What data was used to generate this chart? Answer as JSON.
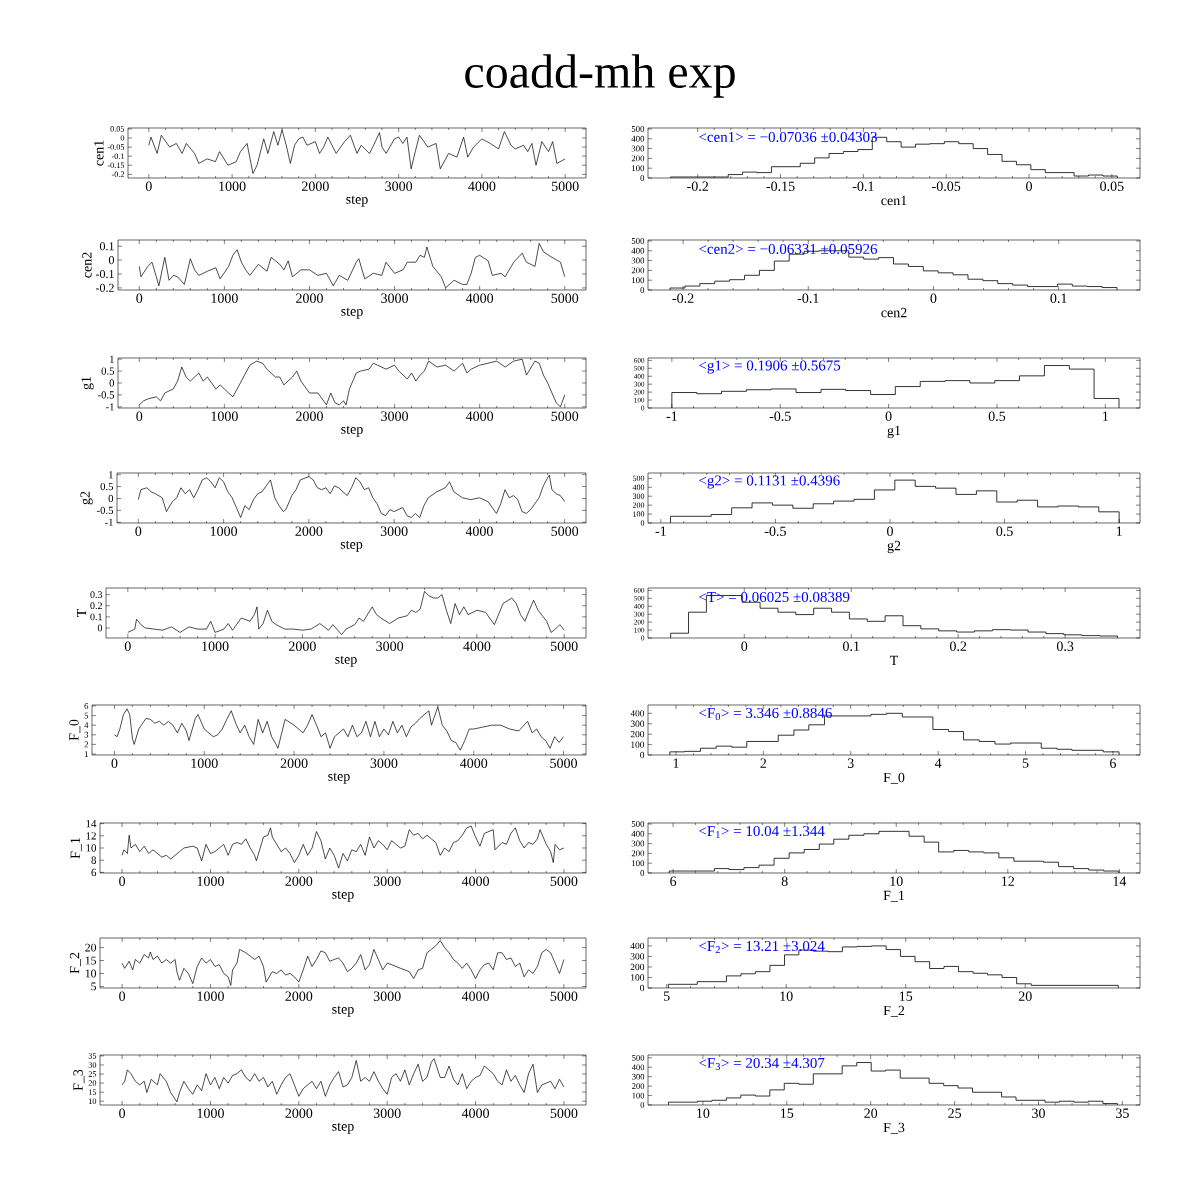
{
  "chart_data": [
    {
      "type": "line",
      "title": "coadd-mh exp",
      "xlabel": "step",
      "ylabel": "cen1",
      "color": "#000000",
      "xlim": [
        -250,
        5250
      ],
      "xticks": [
        0,
        1000,
        2000,
        3000,
        4000,
        5000
      ],
      "ylim": [
        -0.22,
        0.055
      ],
      "yticks": [
        -0.2,
        -0.15,
        -0.1,
        -0.05,
        0,
        0.05
      ],
      "x": [
        0,
        25,
        100,
        150,
        250,
        330,
        400,
        450,
        550,
        600,
        700,
        800,
        850,
        950,
        1050,
        1100,
        1180,
        1250,
        1300,
        1380,
        1430,
        1500,
        1550,
        1600,
        1650,
        1700,
        1750,
        1800,
        1850,
        1900,
        2000,
        2050,
        2100,
        2150,
        2250,
        2350,
        2420,
        2500,
        2550,
        2650,
        2700,
        2770,
        2800,
        2850,
        2950,
        3000,
        3050,
        3100,
        3150,
        3200,
        3250,
        3350,
        3450,
        3500,
        3600,
        3700,
        3780,
        3830,
        3900,
        4000,
        4100,
        4200,
        4270,
        4350,
        4400,
        4500,
        4550,
        4600,
        4650,
        4720,
        4800,
        4850,
        4900,
        5000
      ],
      "values": [
        -0.04,
        0.005,
        -0.085,
        0.015,
        -0.05,
        -0.03,
        -0.085,
        -0.03,
        -0.085,
        -0.14,
        -0.115,
        -0.13,
        -0.075,
        -0.15,
        -0.13,
        -0.075,
        -0.03,
        -0.195,
        -0.15,
        -0.005,
        -0.085,
        0.035,
        -0.04,
        0.045,
        -0.04,
        -0.14,
        -0.04,
        -0.005,
        0.005,
        -0.04,
        -0.02,
        -0.085,
        -0.05,
        0.005,
        -0.085,
        -0.02,
        0.015,
        -0.085,
        -0.04,
        -0.085,
        -0.04,
        0.03,
        -0.05,
        -0.085,
        -0.005,
        0.005,
        -0.03,
        0.005,
        -0.17,
        -0.075,
        0.015,
        -0.05,
        -0.03,
        -0.17,
        -0.085,
        -0.105,
        0.005,
        -0.105,
        -0.05,
        -0.005,
        -0.03,
        -0.06,
        0.035,
        -0.04,
        -0.06,
        -0.04,
        -0.075,
        -0.03,
        -0.15,
        -0.02,
        -0.075,
        -0.02,
        -0.14,
        -0.115
      ]
    },
    {
      "type": "histogram",
      "xlabel": "cen1",
      "color": "#000000",
      "xlim": [
        -0.23,
        0.067
      ],
      "xticks": [
        -0.2,
        -0.15,
        -0.1,
        -0.05,
        0,
        0.05
      ],
      "ylim": [
        0,
        510
      ],
      "yticks": [
        0,
        100,
        200,
        300,
        400,
        500
      ],
      "annotations": [
        "<cen1> = −0.07036 ±0.04303"
      ],
      "bins": [
        -0.2164,
        -0.1816,
        -0.1729,
        -0.1642,
        -0.1555,
        -0.1381,
        -0.1294,
        -0.1207,
        -0.112,
        -0.1033,
        -0.0946,
        -0.0859,
        -0.0772,
        -0.0685,
        -0.0598,
        -0.0511,
        -0.0424,
        -0.0337,
        -0.025,
        -0.0163,
        -0.0076,
        0.0011,
        0.0098,
        0.0272,
        0.0359,
        0.0446,
        0.0533
      ],
      "values": [
        10,
        35,
        60,
        55,
        115,
        150,
        205,
        250,
        270,
        290,
        415,
        370,
        315,
        345,
        350,
        370,
        350,
        300,
        240,
        170,
        135,
        85,
        55,
        20,
        30,
        20
      ]
    },
    {
      "type": "line",
      "xlabel": "step",
      "ylabel": "cen2",
      "color": "#000000",
      "xlim": [
        -250,
        5250
      ],
      "xticks": [
        0,
        1000,
        2000,
        3000,
        4000,
        5000
      ],
      "ylim": [
        -0.215,
        0.145
      ],
      "yticks": [
        -0.2,
        -0.1,
        0,
        0.1
      ],
      "x": [
        0,
        20,
        100,
        150,
        200,
        230,
        300,
        350,
        400,
        450,
        530,
        600,
        650,
        700,
        800,
        900,
        950,
        1050,
        1100,
        1150,
        1200,
        1250,
        1300,
        1400,
        1500,
        1550,
        1600,
        1650,
        1700,
        1750,
        1800,
        1900,
        2000,
        2100,
        2200,
        2280,
        2350,
        2450,
        2550,
        2580,
        2650,
        2750,
        2850,
        2900,
        3000,
        3100,
        3150,
        3250,
        3300,
        3350,
        3380,
        3450,
        3550,
        3600,
        3700,
        3800,
        3850,
        3900,
        3950,
        4000,
        4100,
        4150,
        4250,
        4300,
        4400,
        4500,
        4550,
        4650,
        4700,
        4750,
        4850,
        4950,
        5000
      ],
      "values": [
        -0.045,
        -0.12,
        -0.045,
        -0.015,
        -0.12,
        -0.185,
        0.02,
        -0.145,
        -0.11,
        -0.12,
        -0.175,
        0.01,
        -0.07,
        -0.11,
        -0.08,
        -0.055,
        -0.135,
        -0.045,
        0.035,
        0.075,
        -0.015,
        -0.07,
        -0.11,
        -0.03,
        -0.08,
        0.02,
        -0.005,
        -0.03,
        -0.07,
        -0.005,
        -0.12,
        -0.07,
        -0.07,
        -0.11,
        -0.095,
        -0.185,
        -0.11,
        -0.145,
        -0.015,
        0.01,
        -0.135,
        -0.095,
        -0.11,
        -0.015,
        -0.095,
        -0.07,
        -0.015,
        -0.015,
        0.035,
        0.02,
        0.095,
        -0.045,
        -0.12,
        -0.2,
        -0.145,
        -0.175,
        -0.175,
        -0.095,
        0.02,
        0.035,
        -0.005,
        -0.11,
        -0.095,
        -0.12,
        -0.015,
        0.05,
        -0.015,
        -0.045,
        0.12,
        0.06,
        0.02,
        -0.015,
        -0.12
      ]
    },
    {
      "type": "histogram",
      "xlabel": "cen2",
      "color": "#000000",
      "xlim": [
        -0.228,
        0.165
      ],
      "xticks": [
        -0.2,
        -0.1,
        0,
        0.1
      ],
      "ylim": [
        0,
        510
      ],
      "yticks": [
        0,
        100,
        200,
        300,
        400,
        500
      ],
      "annotations": [
        "<cen2> = −0.06331 ±0.05926"
      ],
      "bins": [
        -0.2104,
        -0.1985,
        -0.1866,
        -0.1747,
        -0.1628,
        -0.1509,
        -0.139,
        -0.1271,
        -0.1152,
        -0.1033,
        -0.0914,
        -0.0676,
        -0.0557,
        -0.0438,
        -0.0319,
        -0.02,
        -0.0081,
        0.0038,
        0.0157,
        0.0276,
        0.0395,
        0.0514,
        0.0633,
        0.0752,
        0.099,
        0.1109,
        0.1228,
        0.1347,
        0.1466
      ],
      "values": [
        20,
        40,
        65,
        90,
        105,
        150,
        200,
        295,
        365,
        395,
        400,
        335,
        315,
        330,
        265,
        240,
        195,
        175,
        155,
        110,
        95,
        65,
        50,
        35,
        60,
        40,
        35,
        25
      ]
    },
    {
      "type": "line",
      "xlabel": "step",
      "ylabel": "g1",
      "color": "#000000",
      "xlim": [
        -250,
        5250
      ],
      "xticks": [
        0,
        1000,
        2000,
        3000,
        4000,
        5000
      ],
      "ylim": [
        -1.05,
        1.05
      ],
      "yticks": [
        -1,
        -0.5,
        0,
        0.5,
        1
      ],
      "x": [
        0,
        50,
        100,
        200,
        250,
        300,
        400,
        450,
        500,
        550,
        600,
        700,
        750,
        800,
        900,
        950,
        1050,
        1100,
        1150,
        1200,
        1250,
        1300,
        1380,
        1450,
        1500,
        1600,
        1650,
        1700,
        1800,
        1850,
        1900,
        2000,
        2100,
        2150,
        2200,
        2250,
        2300,
        2350,
        2400,
        2430,
        2470,
        2550,
        2600,
        2700,
        2750,
        2800,
        2900,
        3000,
        3050,
        3150,
        3200,
        3250,
        3300,
        3350,
        3400,
        3500,
        3600,
        3700,
        3800,
        3850,
        3900,
        4000,
        4100,
        4200,
        4300,
        4400,
        4500,
        4550,
        4650,
        4700,
        4750,
        4800,
        4850,
        4900,
        4950,
        5000
      ],
      "values": [
        -0.92,
        -0.75,
        -0.67,
        -0.58,
        -0.75,
        -0.42,
        -0.25,
        0.08,
        0.67,
        0.25,
        0.08,
        0.42,
        0.08,
        0.25,
        -0.25,
        -0.08,
        -0.42,
        -0.58,
        -0.25,
        0.08,
        0.42,
        0.75,
        0.92,
        0.83,
        0.58,
        0.25,
        0.25,
        -0.08,
        0.25,
        0.5,
        0.08,
        -0.42,
        -0.42,
        -0.67,
        -0.92,
        -0.42,
        -0.83,
        -0.92,
        -0.75,
        -0.92,
        -0.25,
        0.42,
        0.5,
        0.58,
        0.83,
        0.75,
        0.58,
        0.75,
        0.5,
        0.17,
        0.42,
        0.08,
        0.33,
        0.5,
        0.92,
        0.67,
        0.75,
        0.5,
        0.83,
        0.42,
        0.58,
        0.75,
        0.83,
        0.92,
        0.67,
        0.92,
        1.0,
        0.33,
        0.92,
        0.83,
        0.33,
        0.0,
        -0.42,
        -0.83,
        -1.0,
        -0.5
      ]
    },
    {
      "type": "histogram",
      "xlabel": "g1",
      "color": "#000000",
      "xlim": [
        -1.11,
        1.16
      ],
      "xticks": [
        -1,
        -0.5,
        0,
        0.5,
        1
      ],
      "ylim": [
        0,
        630
      ],
      "yticks": [
        0,
        100,
        200,
        300,
        400,
        500,
        600
      ],
      "annotations": [
        "<g1> = 0.1906 ±0.5675"
      ],
      "bins": [
        -1.0,
        -0.885,
        -0.771,
        -0.656,
        -0.542,
        -0.427,
        -0.312,
        -0.198,
        -0.083,
        0.031,
        0.146,
        0.261,
        0.375,
        0.49,
        0.604,
        0.719,
        0.834,
        0.948,
        1.063
      ],
      "values": [
        195,
        180,
        210,
        230,
        240,
        195,
        235,
        220,
        170,
        270,
        335,
        345,
        315,
        345,
        405,
        535,
        490,
        120
      ]
    },
    {
      "type": "line",
      "xlabel": "step",
      "ylabel": "g2",
      "color": "#000000",
      "xlim": [
        -250,
        5250
      ],
      "xticks": [
        0,
        1000,
        2000,
        3000,
        4000,
        5000
      ],
      "ylim": [
        -1.03,
        1.07
      ],
      "yticks": [
        -1,
        -0.5,
        0,
        0.5,
        1
      ],
      "x": [
        0,
        30,
        100,
        150,
        200,
        280,
        330,
        400,
        450,
        500,
        550,
        600,
        650,
        700,
        750,
        800,
        850,
        900,
        950,
        1000,
        1050,
        1100,
        1150,
        1200,
        1250,
        1300,
        1350,
        1400,
        1450,
        1500,
        1550,
        1600,
        1650,
        1700,
        1730,
        1800,
        1850,
        1900,
        2000,
        2050,
        2100,
        2150,
        2200,
        2250,
        2300,
        2350,
        2400,
        2450,
        2500,
        2550,
        2600,
        2650,
        2700,
        2750,
        2800,
        2850,
        2900,
        2950,
        3000,
        3100,
        3150,
        3200,
        3250,
        3300,
        3350,
        3400,
        3500,
        3600,
        3650,
        3700,
        3800,
        3900,
        4000,
        4100,
        4150,
        4200,
        4250,
        4300,
        4350,
        4400,
        4450,
        4500,
        4550,
        4600,
        4700,
        4750,
        4800,
        4820,
        4850,
        4900,
        4950,
        5000
      ],
      "values": [
        -0.05,
        0.37,
        0.45,
        0.28,
        0.2,
        0.03,
        -0.55,
        -0.13,
        0.03,
        0.45,
        0.2,
        0.37,
        0.03,
        0.37,
        0.78,
        0.87,
        0.7,
        0.45,
        0.87,
        0.7,
        0.28,
        0.03,
        -0.38,
        -0.8,
        -0.3,
        -0.47,
        -0.05,
        0.2,
        0.28,
        0.53,
        0.78,
        0.03,
        -0.3,
        -0.55,
        -0.47,
        0.12,
        0.37,
        0.78,
        0.92,
        0.78,
        0.45,
        0.37,
        0.45,
        0.2,
        0.53,
        0.45,
        0.28,
        0.12,
        0.45,
        0.87,
        0.7,
        0.37,
        0.45,
        0.03,
        -0.22,
        -0.63,
        -0.72,
        -0.47,
        -0.55,
        -0.38,
        -0.72,
        -0.8,
        -0.63,
        -0.8,
        -0.3,
        0.03,
        0.28,
        0.45,
        0.7,
        0.28,
        0.03,
        -0.05,
        0.03,
        -0.13,
        -0.38,
        -0.63,
        -0.22,
        0.37,
        0.03,
        0.12,
        -0.05,
        -0.55,
        -0.63,
        -0.47,
        0.03,
        0.53,
        0.87,
        0.98,
        0.37,
        0.2,
        0.12,
        -0.13
      ]
    },
    {
      "type": "histogram",
      "xlabel": "g2",
      "color": "#000000",
      "xlim": [
        -1.056,
        1.091
      ],
      "xticks": [
        -1,
        -0.5,
        0,
        0.5,
        1
      ],
      "ylim": [
        0,
        560
      ],
      "yticks": [
        0,
        100,
        200,
        300,
        400,
        500
      ],
      "annotations": [
        "<g2> = 0.1131 ±0.4396"
      ],
      "bins": [
        -0.958,
        -0.78,
        -0.691,
        -0.602,
        -0.513,
        -0.424,
        -0.335,
        -0.246,
        -0.157,
        -0.068,
        0.021,
        0.11,
        0.199,
        0.288,
        0.377,
        0.466,
        0.555,
        0.644,
        0.733,
        0.822,
        0.911,
        1.0
      ],
      "values": [
        75,
        95,
        170,
        225,
        200,
        165,
        215,
        245,
        265,
        370,
        480,
        410,
        390,
        320,
        360,
        235,
        255,
        180,
        190,
        180,
        125
      ]
    },
    {
      "type": "line",
      "xlabel": "step",
      "ylabel": "T",
      "color": "#000000",
      "xlim": [
        -250,
        5250
      ],
      "xticks": [
        0,
        1000,
        2000,
        3000,
        4000,
        5000
      ],
      "ylim": [
        -0.09,
        0.36
      ],
      "yticks": [
        0,
        0.1,
        0.2,
        0.3
      ],
      "x": [
        0,
        80,
        100,
        150,
        200,
        300,
        400,
        500,
        600,
        700,
        800,
        900,
        950,
        1000,
        1100,
        1150,
        1200,
        1300,
        1400,
        1450,
        1480,
        1500,
        1550,
        1600,
        1650,
        1700,
        1800,
        1900,
        2000,
        2100,
        2200,
        2300,
        2350,
        2450,
        2500,
        2600,
        2650,
        2700,
        2800,
        2850,
        2900,
        3000,
        3100,
        3200,
        3250,
        3300,
        3350,
        3400,
        3450,
        3500,
        3550,
        3600,
        3650,
        3700,
        3750,
        3800,
        3850,
        3900,
        4000,
        4100,
        4200,
        4300,
        4400,
        4450,
        4500,
        4550,
        4600,
        4650,
        4700,
        4800,
        4850,
        4900,
        4950,
        5000
      ],
      "values": [
        -0.04,
        -0.01,
        0.08,
        0.03,
        0,
        -0.01,
        -0.02,
        0.01,
        -0.04,
        0.01,
        -0.01,
        -0.01,
        0.06,
        -0.04,
        -0.01,
        0.04,
        -0.02,
        0.09,
        0.06,
        0.12,
        0.19,
        -0.01,
        0.04,
        0.16,
        0.06,
        0.03,
        -0.01,
        -0.01,
        -0.02,
        -0.01,
        0.04,
        -0.02,
        0.03,
        -0.06,
        -0.01,
        0.03,
        0.09,
        0.06,
        0.19,
        0.12,
        0.09,
        0.04,
        0.09,
        0.11,
        0.16,
        0.14,
        0.17,
        0.33,
        0.29,
        0.27,
        0.27,
        0.3,
        0.16,
        0.04,
        0.22,
        0.12,
        0.19,
        0.12,
        0.16,
        0.14,
        0.03,
        0.22,
        0.27,
        0.22,
        0.12,
        0.06,
        0.16,
        0.25,
        0.16,
        0.06,
        -0.04,
        -0.01,
        0.03,
        -0.02
      ]
    },
    {
      "type": "histogram",
      "xlabel": "T",
      "color": "#000000",
      "xlim": [
        -0.09,
        0.37
      ],
      "xticks": [
        0,
        0.1,
        0.2,
        0.3
      ],
      "ylim": [
        0,
        630
      ],
      "yticks": [
        0,
        100,
        200,
        300,
        400,
        500,
        600
      ],
      "annotations": [
        "<T> = 0.06025 ±0.08389"
      ],
      "bins": [
        -0.0688,
        -0.0521,
        -0.0354,
        -0.002,
        0.0148,
        0.0315,
        0.0482,
        0.0649,
        0.0816,
        0.0983,
        0.115,
        0.1317,
        0.1484,
        0.1651,
        0.1818,
        0.1986,
        0.2153,
        0.232,
        0.2487,
        0.2654,
        0.2821,
        0.2988,
        0.3155,
        0.3322,
        0.3489
      ],
      "values": [
        60,
        325,
        535,
        450,
        375,
        325,
        295,
        375,
        325,
        240,
        210,
        280,
        155,
        115,
        90,
        75,
        90,
        105,
        100,
        75,
        55,
        40,
        30,
        25
      ]
    },
    {
      "type": "line",
      "xlabel": "step",
      "ylabel": "F_0",
      "color": "#000000",
      "xlim": [
        -250,
        5250
      ],
      "xticks": [
        0,
        1000,
        2000,
        3000,
        4000,
        5000
      ],
      "ylim": [
        0.9,
        6.1
      ],
      "yticks": [
        1,
        2,
        3,
        4,
        5,
        6
      ],
      "x": [
        0,
        30,
        60,
        100,
        140,
        170,
        200,
        220,
        270,
        300,
        350,
        400,
        450,
        500,
        550,
        600,
        650,
        700,
        750,
        800,
        830,
        900,
        930,
        1000,
        1100,
        1150,
        1200,
        1250,
        1300,
        1350,
        1400,
        1450,
        1500,
        1550,
        1600,
        1650,
        1700,
        1750,
        1800,
        1820,
        1900,
        2000,
        2100,
        2150,
        2200,
        2250,
        2300,
        2350,
        2400,
        2450,
        2500,
        2550,
        2600,
        2650,
        2700,
        2750,
        2800,
        2850,
        2900,
        2950,
        3000,
        3050,
        3100,
        3150,
        3200,
        3250,
        3300,
        3350,
        3400,
        3500,
        3530,
        3600,
        3650,
        3700,
        3750,
        3800,
        3850,
        3900,
        3950,
        4000,
        4100,
        4200,
        4300,
        4400,
        4500,
        4600,
        4650,
        4700,
        4750,
        4800,
        4850,
        4900,
        4950,
        5000
      ],
      "values": [
        3.0,
        2.8,
        3.6,
        5.1,
        5.7,
        5.1,
        2.6,
        2.0,
        3.6,
        4.0,
        4.7,
        4.6,
        4.2,
        4.4,
        4.0,
        4.4,
        4.0,
        3.2,
        4.2,
        3.4,
        2.4,
        4.7,
        5.1,
        3.6,
        2.8,
        3.0,
        3.6,
        4.6,
        5.5,
        4.2,
        3.2,
        4.0,
        2.8,
        2.0,
        4.6,
        3.2,
        4.4,
        2.8,
        2.0,
        1.6,
        4.6,
        4.0,
        3.2,
        4.0,
        5.1,
        4.0,
        2.8,
        3.2,
        1.6,
        2.8,
        3.2,
        3.6,
        2.8,
        4.0,
        2.8,
        3.2,
        4.4,
        2.8,
        4.4,
        2.8,
        3.6,
        3.0,
        4.4,
        3.2,
        4.0,
        2.8,
        3.8,
        4.2,
        4.7,
        5.5,
        4.0,
        5.9,
        4.0,
        3.4,
        2.4,
        2.2,
        1.4,
        2.4,
        3.6,
        3.6,
        3.8,
        4.0,
        4.0,
        3.6,
        3.4,
        4.4,
        3.2,
        3.6,
        2.8,
        2.4,
        1.6,
        2.8,
        2.2,
        2.8
      ]
    },
    {
      "type": "histogram",
      "xlabel": "F_0",
      "color": "#000000",
      "xlim": [
        0.68,
        6.31
      ],
      "xticks": [
        1,
        2,
        3,
        4,
        5,
        6
      ],
      "ylim": [
        0,
        480
      ],
      "yticks": [
        0,
        100,
        200,
        300,
        400
      ],
      "annotations": [
        "<F$_{0}$> = 3.346 ±0.8846"
      ],
      "bins": [
        0.93,
        1.1,
        1.28,
        1.46,
        1.64,
        1.81,
        2.17,
        2.35,
        2.52,
        2.7,
        3.23,
        3.41,
        3.59,
        3.94,
        4.12,
        4.29,
        4.47,
        4.65,
        4.83,
        5.18,
        5.36,
        5.53,
        5.89,
        6.07
      ],
      "values": [
        30,
        35,
        65,
        85,
        75,
        130,
        190,
        240,
        290,
        375,
        390,
        400,
        365,
        245,
        225,
        145,
        130,
        105,
        115,
        65,
        55,
        45,
        30
      ]
    },
    {
      "type": "line",
      "xlabel": "step",
      "ylabel": "F_1",
      "color": "#000000",
      "xlim": [
        -250,
        5250
      ],
      "xticks": [
        0,
        1000,
        2000,
        3000,
        4000,
        5000
      ],
      "ylim": [
        5.9,
        14.1
      ],
      "yticks": [
        6,
        8,
        10,
        12,
        14
      ],
      "x": [
        0,
        20,
        60,
        80,
        100,
        150,
        200,
        250,
        300,
        350,
        400,
        450,
        500,
        550,
        600,
        650,
        700,
        800,
        850,
        900,
        950,
        1000,
        1050,
        1100,
        1150,
        1200,
        1250,
        1300,
        1350,
        1400,
        1450,
        1500,
        1520,
        1600,
        1650,
        1680,
        1700,
        1750,
        1800,
        1850,
        1900,
        1950,
        2000,
        2050,
        2100,
        2150,
        2200,
        2250,
        2300,
        2350,
        2400,
        2450,
        2500,
        2550,
        2600,
        2650,
        2700,
        2750,
        2800,
        2850,
        2900,
        2950,
        3000,
        3050,
        3100,
        3150,
        3200,
        3250,
        3300,
        3350,
        3400,
        3450,
        3500,
        3550,
        3600,
        3650,
        3700,
        3750,
        3800,
        3850,
        3900,
        3950,
        4000,
        4050,
        4100,
        4150,
        4200,
        4220,
        4300,
        4350,
        4400,
        4450,
        4500,
        4550,
        4600,
        4650,
        4700,
        4730,
        4800,
        4850,
        4880,
        4900,
        4950,
        5000
      ],
      "values": [
        8.8,
        9.7,
        9.1,
        12.1,
        10.0,
        10.6,
        9.4,
        10.3,
        9.1,
        9.7,
        9.1,
        8.5,
        8.8,
        8.2,
        8.8,
        9.4,
        10.0,
        10.3,
        10.0,
        7.9,
        10.6,
        9.1,
        9.4,
        10.0,
        10.6,
        8.8,
        10.6,
        10.9,
        10.6,
        11.5,
        10.0,
        8.8,
        7.9,
        11.8,
        12.1,
        13.3,
        11.8,
        10.6,
        9.4,
        10.0,
        9.1,
        7.6,
        8.8,
        10.6,
        8.8,
        10.0,
        12.7,
        11.2,
        8.2,
        10.0,
        8.8,
        6.7,
        9.1,
        7.9,
        9.7,
        9.4,
        10.6,
        8.8,
        11.8,
        10.0,
        11.2,
        10.6,
        9.7,
        11.2,
        10.6,
        10.0,
        10.3,
        13.0,
        12.1,
        12.4,
        11.5,
        12.1,
        11.5,
        10.9,
        8.8,
        10.0,
        9.4,
        10.9,
        11.2,
        12.1,
        13.3,
        13.6,
        11.8,
        10.3,
        12.4,
        12.7,
        13.0,
        9.7,
        10.9,
        10.6,
        12.4,
        13.3,
        11.2,
        10.0,
        10.9,
        10.6,
        11.5,
        13.0,
        10.6,
        9.4,
        7.6,
        10.6,
        9.7,
        10.0
      ]
    },
    {
      "type": "histogram",
      "xlabel": "F_1",
      "color": "#000000",
      "xlim": [
        5.55,
        14.37
      ],
      "xticks": [
        6,
        8,
        10,
        12,
        14
      ],
      "ylim": [
        0,
        510
      ],
      "yticks": [
        0,
        100,
        200,
        300,
        400,
        500
      ],
      "annotations": [
        "<F$_{1}$> = 10.04 ±1.344"
      ],
      "bins": [
        5.93,
        6.74,
        7.0,
        7.27,
        7.54,
        7.81,
        8.08,
        8.35,
        8.62,
        8.88,
        9.15,
        9.42,
        9.69,
        10.23,
        10.5,
        10.76,
        11.03,
        11.3,
        11.57,
        11.84,
        12.11,
        12.64,
        12.91,
        13.18,
        13.45,
        13.72,
        13.99
      ],
      "values": [
        20,
        45,
        35,
        55,
        80,
        150,
        205,
        240,
        295,
        345,
        385,
        400,
        425,
        375,
        315,
        215,
        230,
        215,
        205,
        155,
        120,
        110,
        65,
        45,
        30,
        20
      ]
    },
    {
      "type": "line",
      "xlabel": "step",
      "ylabel": "F_2",
      "color": "#000000",
      "xlim": [
        -250,
        5250
      ],
      "xticks": [
        0,
        1000,
        2000,
        3000,
        4000,
        5000
      ],
      "ylim": [
        4.4,
        23.7
      ],
      "yticks": [
        5,
        10,
        15,
        20
      ],
      "x": [
        0,
        30,
        80,
        120,
        150,
        200,
        250,
        300,
        320,
        350,
        400,
        450,
        500,
        550,
        600,
        620,
        650,
        700,
        750,
        800,
        850,
        900,
        950,
        1000,
        1050,
        1100,
        1150,
        1200,
        1230,
        1250,
        1300,
        1330,
        1400,
        1450,
        1500,
        1550,
        1600,
        1630,
        1700,
        1750,
        1800,
        1850,
        1900,
        1950,
        2000,
        2050,
        2100,
        2150,
        2200,
        2250,
        2300,
        2350,
        2400,
        2450,
        2500,
        2550,
        2600,
        2650,
        2700,
        2750,
        2800,
        2850,
        2900,
        2950,
        3000,
        3050,
        3100,
        3150,
        3200,
        3250,
        3300,
        3350,
        3400,
        3450,
        3500,
        3550,
        3600,
        3650,
        3700,
        3750,
        3800,
        3850,
        3900,
        3950,
        4000,
        4050,
        4100,
        4150,
        4200,
        4250,
        4300,
        4350,
        4400,
        4450,
        4500,
        4550,
        4600,
        4650,
        4700,
        4750,
        4800,
        4850,
        4900,
        4950,
        5000
      ],
      "values": [
        14.0,
        12.0,
        14.7,
        11.4,
        15.4,
        14.0,
        17.3,
        16.0,
        18.3,
        15.4,
        16.7,
        14.0,
        15.4,
        14.0,
        15.4,
        10.7,
        7.4,
        12.0,
        10.0,
        6.1,
        12.7,
        16.0,
        14.0,
        15.4,
        12.7,
        13.4,
        10.0,
        8.7,
        5.4,
        11.4,
        14.0,
        19.3,
        18.0,
        16.7,
        15.4,
        16.7,
        12.7,
        6.7,
        10.7,
        10.0,
        11.4,
        9.4,
        10.0,
        8.7,
        6.7,
        11.4,
        16.7,
        12.7,
        15.4,
        18.7,
        18.0,
        14.7,
        15.4,
        16.0,
        14.0,
        10.7,
        12.0,
        14.0,
        17.3,
        11.4,
        13.4,
        19.3,
        15.4,
        11.4,
        14.0,
        13.4,
        12.7,
        12.0,
        11.4,
        10.7,
        8.0,
        11.4,
        12.0,
        18.0,
        19.3,
        20.7,
        22.7,
        20.0,
        18.0,
        15.4,
        14.0,
        12.0,
        14.0,
        11.4,
        8.0,
        11.4,
        13.4,
        14.0,
        11.4,
        18.0,
        18.0,
        15.4,
        16.0,
        12.7,
        14.0,
        8.7,
        11.4,
        10.0,
        12.7,
        18.0,
        19.3,
        18.0,
        14.0,
        10.0,
        15.4
      ]
    },
    {
      "type": "histogram",
      "xlabel": "F_2",
      "color": "#000000",
      "xlim": [
        4.22,
        24.8
      ],
      "xticks": [
        5,
        10,
        15,
        20
      ],
      "ylim": [
        0,
        475
      ],
      "yticks": [
        0,
        100,
        200,
        300,
        400
      ],
      "annotations": [
        "<F$_{2}$> = 13.21 ±3.024"
      ],
      "bins": [
        5.07,
        6.28,
        7.5,
        8.11,
        8.71,
        9.32,
        9.93,
        10.53,
        11.14,
        11.75,
        12.35,
        12.96,
        13.57,
        14.18,
        14.78,
        15.39,
        16.0,
        16.6,
        17.21,
        17.82,
        18.42,
        19.03,
        19.64,
        20.25,
        23.89
      ],
      "values": [
        35,
        60,
        115,
        135,
        155,
        215,
        315,
        360,
        350,
        345,
        390,
        395,
        400,
        365,
        300,
        250,
        185,
        205,
        155,
        140,
        125,
        100,
        40,
        25
      ]
    },
    {
      "type": "line",
      "xlabel": "step",
      "ylabel": "F_3",
      "color": "#000000",
      "xlim": [
        -250,
        5250
      ],
      "xticks": [
        0,
        1000,
        2000,
        3000,
        4000,
        5000
      ],
      "ylim": [
        7.9,
        35.5
      ],
      "yticks": [
        10,
        15,
        20,
        25,
        30,
        35
      ],
      "x": [
        0,
        30,
        60,
        100,
        150,
        200,
        250,
        280,
        330,
        400,
        430,
        500,
        550,
        620,
        650,
        700,
        750,
        800,
        850,
        900,
        950,
        1000,
        1050,
        1100,
        1150,
        1200,
        1250,
        1300,
        1350,
        1400,
        1450,
        1500,
        1550,
        1600,
        1650,
        1700,
        1750,
        1800,
        1850,
        1900,
        1950,
        2000,
        2050,
        2100,
        2150,
        2200,
        2250,
        2300,
        2350,
        2400,
        2450,
        2500,
        2550,
        2600,
        2650,
        2700,
        2750,
        2800,
        2850,
        2900,
        2950,
        3000,
        3050,
        3100,
        3150,
        3200,
        3250,
        3300,
        3350,
        3400,
        3450,
        3500,
        3530,
        3600,
        3650,
        3700,
        3750,
        3800,
        3850,
        3900,
        3950,
        4000,
        4050,
        4100,
        4150,
        4200,
        4250,
        4300,
        4350,
        4400,
        4450,
        4500,
        4550,
        4600,
        4650,
        4700,
        4750,
        4800,
        4850,
        4900,
        4950,
        5000
      ],
      "values": [
        19.0,
        21.0,
        27.3,
        25.2,
        21.0,
        19.0,
        21.0,
        14.8,
        22.1,
        19.0,
        25.2,
        21.0,
        14.8,
        9.6,
        14.8,
        21.0,
        16.9,
        13.8,
        19.0,
        15.8,
        25.2,
        19.0,
        23.1,
        16.9,
        23.1,
        20.0,
        24.2,
        25.2,
        27.3,
        23.1,
        21.0,
        25.2,
        21.0,
        23.1,
        17.9,
        21.0,
        13.8,
        19.0,
        23.1,
        25.2,
        19.0,
        12.7,
        16.9,
        19.0,
        21.0,
        16.9,
        21.0,
        12.7,
        19.0,
        23.1,
        26.3,
        17.9,
        19.0,
        23.1,
        32.5,
        21.0,
        23.1,
        21.0,
        26.3,
        21.0,
        16.9,
        13.8,
        23.1,
        25.2,
        21.0,
        27.3,
        19.0,
        25.2,
        30.4,
        21.0,
        23.1,
        31.5,
        33.5,
        23.1,
        23.1,
        29.4,
        22.1,
        19.0,
        25.2,
        16.9,
        21.0,
        23.1,
        24.2,
        29.4,
        27.3,
        25.2,
        21.0,
        19.0,
        27.3,
        21.0,
        24.2,
        19.0,
        14.8,
        25.2,
        30.4,
        14.8,
        19.0,
        20.0,
        21.0,
        16.9,
        22.1,
        17.9
      ]
    },
    {
      "type": "histogram",
      "xlabel": "F_3",
      "color": "#000000",
      "xlim": [
        6.73,
        36.05
      ],
      "xticks": [
        10,
        15,
        20,
        25,
        30,
        35
      ],
      "ylim": [
        0,
        530
      ],
      "yticks": [
        0,
        100,
        200,
        300,
        400,
        500
      ],
      "annotations": [
        "<F$_{3}$> = 20.34 ±4.307"
      ],
      "bins": [
        7.95,
        9.68,
        10.54,
        11.4,
        12.26,
        13.13,
        13.99,
        14.85,
        15.72,
        16.58,
        18.3,
        19.17,
        20.03,
        20.89,
        21.76,
        23.48,
        24.35,
        25.21,
        26.07,
        27.8,
        28.66,
        30.39,
        31.25,
        32.11,
        32.97,
        33.84,
        34.7
      ],
      "values": [
        30,
        40,
        50,
        75,
        105,
        95,
        160,
        230,
        220,
        330,
        415,
        450,
        360,
        370,
        285,
        230,
        205,
        180,
        135,
        85,
        50,
        30,
        40,
        30,
        40,
        15
      ]
    }
  ]
}
